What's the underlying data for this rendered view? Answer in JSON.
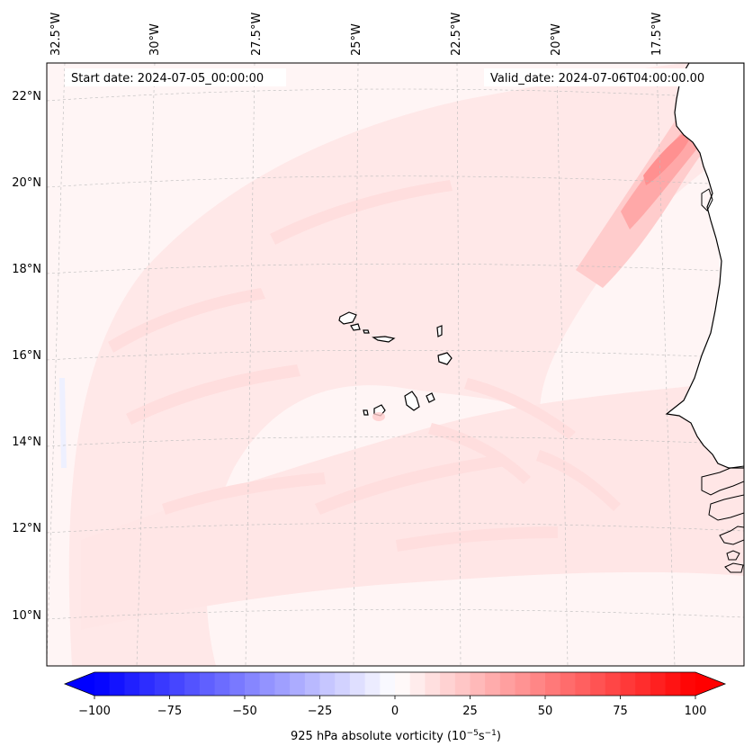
{
  "header": {
    "start_date": "Start date: 2024-07-05_00:00:00",
    "valid_date": "Valid_date: 2024-07-06T04:00:00.00"
  },
  "longitude_labels": [
    "32.5°W",
    "30°W",
    "27.5°W",
    "25°W",
    "22.5°W",
    "20°W",
    "17.5°W"
  ],
  "latitude_labels": [
    "22°N",
    "20°N",
    "18°N",
    "16°N",
    "14°N",
    "12°N",
    "10°N"
  ],
  "colorbar": {
    "title": "925 hPa absolute vorticity (10",
    "title_sup1": "−5",
    "title_mid": "s",
    "title_sup2": "−1",
    "title_end": ")",
    "tick_labels": [
      "−100",
      "−75",
      "−50",
      "−25",
      "0",
      "25",
      "50",
      "75",
      "100"
    ],
    "min": -100,
    "max": 100,
    "levels": 40,
    "colors": {
      "negative": "#0000ff",
      "zero": "#ffffff",
      "positive": "#ff0000"
    }
  },
  "map_colors": {
    "background": "#fff5f5",
    "light_pink": "#ffe8e8",
    "pink": "#ffd9d9",
    "strong": "#ffb0b0",
    "coast": "#000000",
    "grid": "#bbbbbb"
  }
}
